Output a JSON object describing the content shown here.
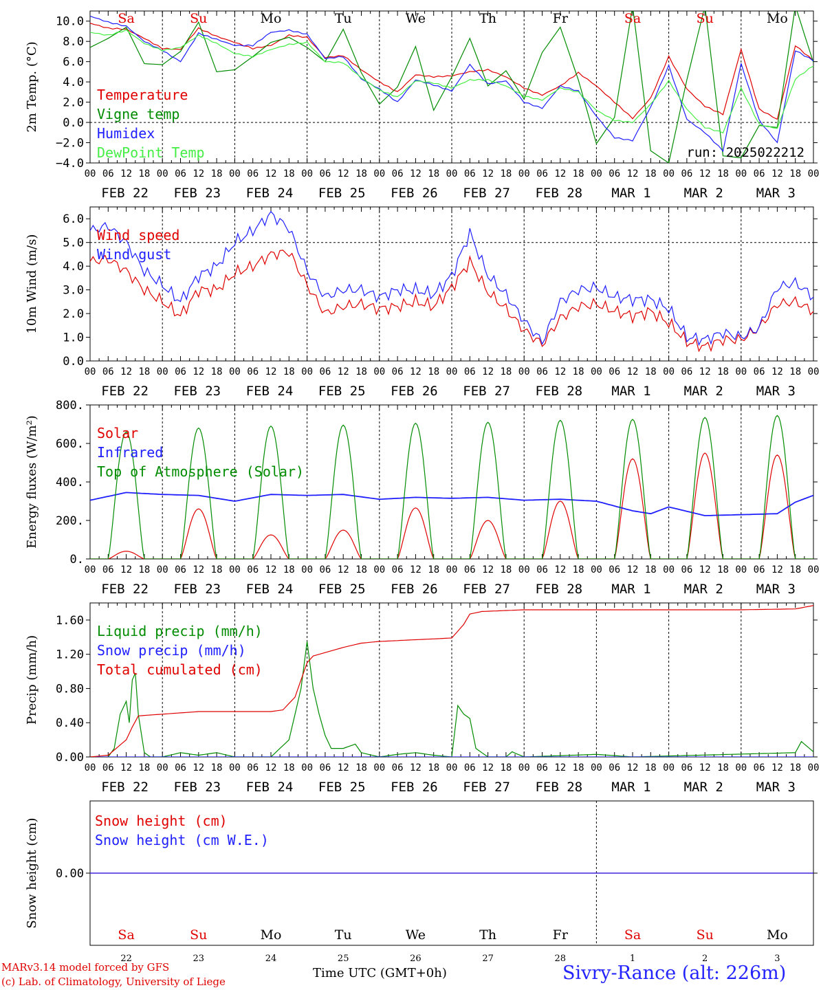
{
  "days": {
    "names": [
      "Sa",
      "Su",
      "Mo",
      "Tu",
      "We",
      "Th",
      "Fr",
      "Sa",
      "Su",
      "Mo"
    ],
    "weekend": [
      true,
      true,
      false,
      false,
      false,
      false,
      false,
      true,
      true,
      false
    ],
    "dates": [
      "FEB 22",
      "FEB 23",
      "FEB 24",
      "FEB 25",
      "FEB 26",
      "FEB 27",
      "FEB 28",
      "MAR  1",
      "MAR  2",
      "MAR  3"
    ],
    "numbers": [
      "22",
      "23",
      "24",
      "25",
      "26",
      "27",
      "28",
      "1",
      "2",
      "3"
    ],
    "hour_ticks": [
      "00",
      "06",
      "12",
      "18"
    ],
    "hour_tick_last": "00"
  },
  "colors": {
    "red": "#e00000",
    "green": "#008c00",
    "blue": "#1e1eff",
    "lightgreen": "#44ee44",
    "black": "#000000"
  },
  "footer": {
    "credit1": "MARv3.14 model forced by GFS",
    "credit2": "(c) Lab. of Climatology, University of Liege",
    "xtitle": "Time UTC (GMT+0h)",
    "station": "Sivry-Rance (alt: 226m)"
  },
  "chart_data": [
    {
      "type": "line",
      "ylabel": "2m Temp. (°C)",
      "ylim": [
        -4,
        11
      ],
      "yticks": [
        -4,
        -2,
        0,
        2,
        4,
        6,
        8,
        10
      ],
      "ytick_labels": [
        "−4.0",
        "−2.0",
        "0.0",
        "2.0",
        "4.0",
        "6.0",
        "8.0",
        "10.0"
      ],
      "annotation": "run: 2025022212",
      "x_unit": "hours from 2025-02-22 00 UTC",
      "series": [
        {
          "name": "Temperature",
          "color": "red",
          "x": [
            0,
            6,
            12,
            18,
            24,
            30,
            36,
            42,
            48,
            54,
            60,
            66,
            72,
            78,
            84,
            90,
            96,
            102,
            108,
            114,
            120,
            126,
            132,
            138,
            144,
            150,
            156,
            162,
            168,
            174,
            180,
            186,
            192,
            198,
            204,
            210,
            216,
            222,
            228,
            234,
            240
          ],
          "y": [
            9.8,
            9.3,
            9.2,
            8.3,
            7.3,
            7.2,
            9.3,
            8.5,
            7.9,
            7.3,
            7.6,
            8.6,
            8.4,
            6.4,
            6.6,
            5.2,
            4.0,
            3.0,
            4.7,
            4.5,
            4.6,
            5.0,
            5.2,
            4.5,
            3.4,
            2.7,
            3.6,
            4.9,
            3.6,
            2.0,
            0.4,
            2.4,
            6.5,
            3.3,
            1.6,
            0.8,
            7.2,
            1.3,
            0.3,
            7.6,
            6.1
          ]
        },
        {
          "name": "Vigne temp",
          "color": "green",
          "x": [
            0,
            6,
            12,
            18,
            24,
            30,
            36,
            42,
            48,
            54,
            60,
            66,
            72,
            78,
            84,
            90,
            96,
            102,
            108,
            114,
            120,
            126,
            132,
            138,
            144,
            150,
            156,
            162,
            168,
            174,
            180,
            186,
            192,
            198,
            204,
            210,
            216,
            222,
            228,
            234,
            240
          ],
          "y": [
            7.4,
            8.3,
            9.4,
            5.8,
            5.7,
            7.0,
            9.9,
            5.0,
            5.2,
            6.5,
            7.9,
            8.4,
            7.4,
            6.0,
            9.2,
            4.9,
            1.8,
            3.5,
            7.5,
            1.2,
            4.5,
            8.3,
            3.6,
            5.1,
            2.3,
            6.9,
            9.4,
            4.2,
            -2.1,
            0.5,
            11.5,
            -2.8,
            -4.0,
            4.2,
            11.5,
            -3.3,
            -3.5,
            -0.3,
            -0.5,
            11.5,
            5.9
          ]
        },
        {
          "name": "Humidex",
          "color": "blue",
          "x": [
            0,
            6,
            12,
            18,
            24,
            30,
            36,
            42,
            48,
            54,
            60,
            66,
            72,
            78,
            84,
            90,
            96,
            102,
            108,
            114,
            120,
            126,
            132,
            138,
            144,
            150,
            156,
            162,
            168,
            174,
            180,
            186,
            192,
            198,
            204,
            210,
            216,
            222,
            228,
            234,
            240
          ],
          "y": [
            10.5,
            9.9,
            9.5,
            8.0,
            7.1,
            6.0,
            8.8,
            8.2,
            7.6,
            7.6,
            8.9,
            9.1,
            8.7,
            6.3,
            6.5,
            4.3,
            3.3,
            2.0,
            4.2,
            3.7,
            3.1,
            5.7,
            3.8,
            4.1,
            2.0,
            1.4,
            3.6,
            3.1,
            0.6,
            -1.5,
            -1.8,
            1.5,
            5.6,
            0.3,
            -1.0,
            -2.8,
            5.8,
            0.2,
            -2.0,
            7.1,
            6.1
          ]
        },
        {
          "name": "DewPoint Temp",
          "color": "lightgreen",
          "x": [
            0,
            6,
            12,
            18,
            24,
            30,
            36,
            42,
            48,
            54,
            60,
            66,
            72,
            78,
            84,
            90,
            96,
            102,
            108,
            114,
            120,
            126,
            132,
            138,
            144,
            150,
            156,
            162,
            168,
            174,
            180,
            186,
            192,
            198,
            204,
            210,
            216,
            222,
            228,
            234,
            240
          ],
          "y": [
            8.9,
            8.6,
            9.1,
            7.8,
            7.1,
            7.4,
            8.6,
            7.8,
            6.8,
            6.5,
            7.2,
            7.7,
            7.9,
            6.0,
            5.9,
            4.4,
            3.2,
            2.5,
            4.1,
            3.9,
            3.4,
            4.2,
            4.2,
            3.6,
            2.6,
            2.2,
            3.4,
            3.0,
            1.2,
            0.2,
            0.0,
            1.8,
            4.1,
            1.3,
            -0.5,
            -1.0,
            3.4,
            -0.2,
            -0.6,
            4.3,
            5.6
          ]
        }
      ]
    },
    {
      "type": "line",
      "ylabel": "10m Wind (m/s)",
      "ylim": [
        0,
        6.5
      ],
      "yticks": [
        0,
        1,
        2,
        3,
        4,
        5,
        6
      ],
      "ytick_labels": [
        "0.0",
        "1.0",
        "2.0",
        "3.0",
        "4.0",
        "5.0",
        "6.0"
      ],
      "ref_line": 5.0,
      "x_unit": "hours from 2025-02-22 00 UTC",
      "series": [
        {
          "name": "Wind speed",
          "color": "red",
          "x": [
            0,
            6,
            12,
            18,
            24,
            30,
            36,
            42,
            48,
            54,
            60,
            66,
            72,
            78,
            84,
            90,
            96,
            102,
            108,
            114,
            120,
            126,
            132,
            138,
            144,
            150,
            156,
            162,
            168,
            174,
            180,
            186,
            192,
            198,
            204,
            210,
            216,
            222,
            228,
            234,
            240
          ],
          "y": [
            4.2,
            4.3,
            3.8,
            3.0,
            2.5,
            1.9,
            3.0,
            3.0,
            3.7,
            4.0,
            4.5,
            4.6,
            3.2,
            2.0,
            2.3,
            2.4,
            2.2,
            2.3,
            2.5,
            2.3,
            3.1,
            4.2,
            2.9,
            2.2,
            1.3,
            0.7,
            1.8,
            2.3,
            2.4,
            2.1,
            1.9,
            2.1,
            1.6,
            0.8,
            0.6,
            0.9,
            0.9,
            1.4,
            2.4,
            2.5,
            2.1
          ]
        },
        {
          "name": "Wind gust",
          "color": "blue",
          "x": [
            0,
            6,
            12,
            18,
            24,
            30,
            36,
            42,
            48,
            54,
            60,
            66,
            72,
            78,
            84,
            90,
            96,
            102,
            108,
            114,
            120,
            126,
            132,
            138,
            144,
            150,
            156,
            162,
            168,
            174,
            180,
            186,
            192,
            198,
            204,
            210,
            216,
            222,
            228,
            234,
            240
          ],
          "y": [
            5.5,
            5.7,
            5.0,
            3.8,
            3.2,
            2.5,
            3.6,
            4.0,
            5.0,
            5.5,
            6.2,
            5.6,
            3.8,
            2.7,
            3.0,
            3.0,
            2.7,
            3.0,
            3.0,
            2.8,
            3.6,
            5.4,
            3.6,
            2.8,
            1.7,
            0.8,
            2.5,
            3.0,
            3.1,
            2.7,
            2.6,
            2.6,
            2.2,
            1.0,
            0.9,
            1.2,
            1.0,
            1.4,
            3.1,
            3.3,
            2.7
          ]
        }
      ]
    },
    {
      "type": "line",
      "ylabel": "Energy fluxes (W/m²)",
      "ylim": [
        0,
        800
      ],
      "yticks": [
        0,
        200,
        400,
        600,
        800
      ],
      "ytick_labels": [
        "0.",
        "200.",
        "400.",
        "600.",
        "800."
      ],
      "x_unit": "hours from 2025-02-22 00 UTC",
      "series": [
        {
          "name": "Solar",
          "color": "red",
          "daily_peak": [
            40,
            260,
            125,
            150,
            265,
            200,
            300,
            520,
            550,
            540
          ]
        },
        {
          "name": "Infrared",
          "color": "blue",
          "x": [
            0,
            12,
            24,
            36,
            48,
            60,
            72,
            84,
            96,
            108,
            120,
            132,
            144,
            156,
            168,
            180,
            186,
            192,
            204,
            216,
            228,
            234,
            240
          ],
          "y": [
            305,
            345,
            335,
            330,
            300,
            335,
            330,
            335,
            310,
            320,
            315,
            320,
            305,
            310,
            300,
            250,
            235,
            270,
            225,
            230,
            235,
            295,
            330
          ]
        },
        {
          "name": "Top of Atmosphere (Solar)",
          "color": "green",
          "daily_peak": [
            660,
            680,
            690,
            695,
            705,
            710,
            720,
            725,
            735,
            745
          ]
        }
      ]
    },
    {
      "type": "line",
      "ylabel": "Precip (mm/h)",
      "ylim": [
        0,
        1.8
      ],
      "yticks": [
        0,
        0.4,
        0.8,
        1.2,
        1.6
      ],
      "ytick_labels": [
        "0.00",
        "0.40",
        "0.80",
        "1.20",
        "1.60"
      ],
      "x_unit": "hours from 2025-02-22 00 UTC",
      "series": [
        {
          "name": "Liquid precip (mm/h)",
          "color": "green",
          "x": [
            0,
            6,
            8,
            10,
            12,
            13,
            14,
            15,
            16,
            18,
            20,
            24,
            30,
            36,
            42,
            48,
            60,
            66,
            70,
            72,
            74,
            76,
            78,
            80,
            84,
            88,
            90,
            96,
            102,
            108,
            114,
            120,
            122,
            124,
            126,
            128,
            132,
            138,
            140,
            144,
            168,
            180,
            234,
            236,
            240
          ],
          "y": [
            0,
            0,
            0.1,
            0.5,
            0.65,
            0.4,
            0.9,
            0.98,
            0.5,
            0.05,
            0,
            0,
            0.05,
            0.02,
            0.05,
            0,
            0,
            0.2,
            0.8,
            1.35,
            0.8,
            0.5,
            0.25,
            0.1,
            0.1,
            0.15,
            0.05,
            0,
            0.03,
            0.05,
            0.02,
            0,
            0.6,
            0.5,
            0.45,
            0.1,
            0,
            0,
            0.06,
            0,
            0.03,
            0,
            0.05,
            0.18,
            0.06
          ]
        },
        {
          "name": "Snow precip (mm/h)",
          "color": "blue",
          "x": [
            0,
            240
          ],
          "y": [
            0,
            0
          ]
        },
        {
          "name": "Total cumulated (cm)",
          "color": "red",
          "x": [
            0,
            6,
            12,
            14,
            16,
            24,
            36,
            48,
            60,
            64,
            68,
            70,
            72,
            74,
            76,
            78,
            84,
            90,
            96,
            108,
            120,
            124,
            126,
            130,
            144,
            168,
            192,
            216,
            234,
            240
          ],
          "y": [
            0,
            0.02,
            0.2,
            0.35,
            0.48,
            0.5,
            0.53,
            0.53,
            0.53,
            0.55,
            0.7,
            0.9,
            1.1,
            1.18,
            1.2,
            1.22,
            1.28,
            1.33,
            1.35,
            1.37,
            1.39,
            1.55,
            1.67,
            1.7,
            1.72,
            1.72,
            1.72,
            1.72,
            1.73,
            1.77
          ]
        }
      ]
    },
    {
      "type": "line",
      "ylabel": "Snow height (cm)",
      "ylim": [
        -1,
        1
      ],
      "yticks": [
        0
      ],
      "ytick_labels": [
        "0.00"
      ],
      "x_unit": "hours from 2025-02-22 00 UTC",
      "series": [
        {
          "name": "Snow height (cm)",
          "color": "red",
          "x": [
            0,
            240
          ],
          "y": [
            0,
            0
          ]
        },
        {
          "name": "Snow height (cm W.E.)",
          "color": "blue",
          "x": [
            0,
            240
          ],
          "y": [
            0,
            0
          ]
        }
      ]
    }
  ]
}
